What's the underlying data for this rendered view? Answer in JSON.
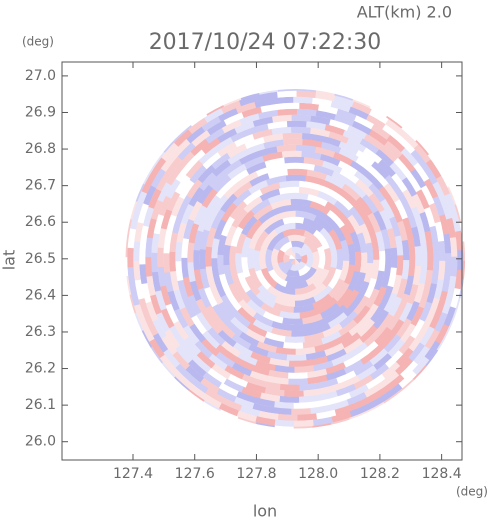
{
  "chart_data": {
    "type": "ppi",
    "title": "2017/10/24 07:22:30",
    "subtitle": "ALT(km) 2.0",
    "x_label": "lon",
    "y_label": "lat",
    "x_unit": "(deg)",
    "y_unit": "(deg)",
    "xlim": [
      127.17,
      128.466
    ],
    "ylim": [
      25.95,
      27.038
    ],
    "xticks": [
      127.4,
      127.6,
      127.8,
      {
        "value": 128.0,
        "label": "128.0"
      },
      128.2,
      128.4
    ],
    "yticks": [
      {
        "value": 26.0,
        "label": "26.0"
      },
      26.1,
      26.2,
      26.3,
      26.4,
      26.5,
      26.6,
      26.7,
      26.8,
      26.9,
      {
        "value": 27.0,
        "label": "27.0"
      }
    ],
    "center": [
      127.926,
      26.5
    ],
    "radius": 0.55
  }
}
